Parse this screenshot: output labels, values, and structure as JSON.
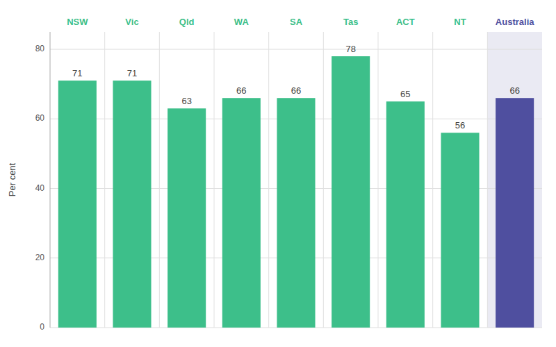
{
  "chart_data": {
    "type": "bar",
    "categories": [
      "NSW",
      "Vic",
      "Qld",
      "WA",
      "SA",
      "Tas",
      "ACT",
      "NT",
      "Australia"
    ],
    "values": [
      71,
      71,
      63,
      66,
      66,
      78,
      65,
      56,
      66
    ],
    "colors": [
      "#3dbf8a",
      "#3dbf8a",
      "#3dbf8a",
      "#3dbf8a",
      "#3dbf8a",
      "#3dbf8a",
      "#3dbf8a",
      "#3dbf8a",
      "#4f4f9f"
    ],
    "ylabel": "Per cent",
    "ylim": [
      0,
      85
    ],
    "yticks": [
      0,
      20,
      40,
      60,
      80
    ],
    "grid": true,
    "data_labels": true
  }
}
